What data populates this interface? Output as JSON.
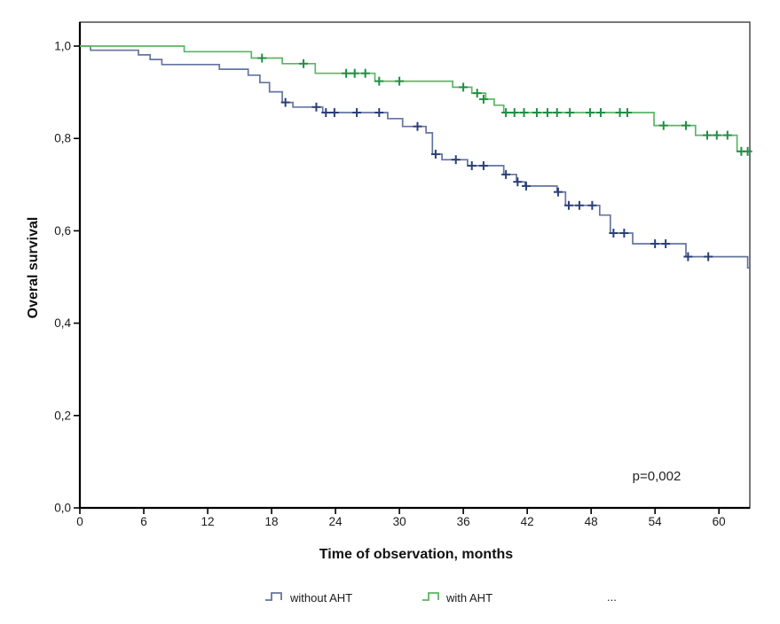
{
  "figure": {
    "background": "#ffffff",
    "frame_color": "#3f3f3f",
    "axis_color": "#000000"
  },
  "chart_data": {
    "type": "line",
    "subtype": "kaplan-meier-step-survival",
    "title": "",
    "xlabel": "Time of observation, months",
    "ylabel": "Overal survival",
    "xlim": [
      0,
      62.9
    ],
    "ylim": [
      0.0,
      1.0
    ],
    "grid": false,
    "legend_position": "bottom",
    "x_ticks": [
      0,
      6,
      12,
      18,
      24,
      30,
      36,
      42,
      48,
      54,
      60
    ],
    "y_ticks": [
      {
        "value": 0.0,
        "label": "0,0"
      },
      {
        "value": 0.2,
        "label": "0,2"
      },
      {
        "value": 0.4,
        "label": "0,4"
      },
      {
        "value": 0.6,
        "label": "0,6"
      },
      {
        "value": 0.8,
        "label": "0,8"
      },
      {
        "value": 1.0,
        "label": "1,0"
      }
    ],
    "annotation": {
      "text": "p=0,002",
      "x_month": 54.2,
      "y_value": 0.065
    },
    "legend_extra": "...",
    "series": [
      {
        "name": "without AHT",
        "color": "#64749f",
        "censor_color": "#2a3f78",
        "start": [
          0,
          1.0
        ],
        "end_x": 62.9,
        "steps": [
          [
            1.0,
            0.991
          ],
          [
            5.5,
            0.981
          ],
          [
            6.6,
            0.971
          ],
          [
            7.7,
            0.96
          ],
          [
            13.1,
            0.95
          ],
          [
            15.8,
            0.937
          ],
          [
            16.9,
            0.921
          ],
          [
            17.8,
            0.901
          ],
          [
            19.0,
            0.878
          ],
          [
            20.0,
            0.868
          ],
          [
            22.8,
            0.856
          ],
          [
            28.9,
            0.843
          ],
          [
            30.3,
            0.826
          ],
          [
            32.5,
            0.812
          ],
          [
            33.1,
            0.766
          ],
          [
            34.0,
            0.754
          ],
          [
            36.4,
            0.741
          ],
          [
            39.8,
            0.722
          ],
          [
            41.0,
            0.706
          ],
          [
            41.8,
            0.697
          ],
          [
            44.8,
            0.684
          ],
          [
            45.6,
            0.655
          ],
          [
            48.8,
            0.634
          ],
          [
            49.8,
            0.595
          ],
          [
            51.9,
            0.572
          ],
          [
            56.9,
            0.544
          ],
          [
            62.7,
            0.52
          ]
        ],
        "censors": [
          [
            19.3,
            0.878
          ],
          [
            22.2,
            0.868
          ],
          [
            23.1,
            0.856
          ],
          [
            23.9,
            0.856
          ],
          [
            26.0,
            0.856
          ],
          [
            28.1,
            0.856
          ],
          [
            31.7,
            0.826
          ],
          [
            33.4,
            0.766
          ],
          [
            35.3,
            0.754
          ],
          [
            36.8,
            0.741
          ],
          [
            37.9,
            0.741
          ],
          [
            40.0,
            0.722
          ],
          [
            41.1,
            0.706
          ],
          [
            41.9,
            0.697
          ],
          [
            44.9,
            0.684
          ],
          [
            45.9,
            0.655
          ],
          [
            46.9,
            0.655
          ],
          [
            48.1,
            0.655
          ],
          [
            50.1,
            0.595
          ],
          [
            51.1,
            0.595
          ],
          [
            54.0,
            0.572
          ],
          [
            55.0,
            0.572
          ],
          [
            57.1,
            0.544
          ],
          [
            59.0,
            0.544
          ]
        ]
      },
      {
        "name": "with AHT",
        "color": "#5bb564",
        "censor_color": "#1f8f43",
        "start": [
          0,
          1.0
        ],
        "end_x": 62.9,
        "steps": [
          [
            9.8,
            0.988
          ],
          [
            16.1,
            0.974
          ],
          [
            19.0,
            0.962
          ],
          [
            22.1,
            0.941
          ],
          [
            27.7,
            0.924
          ],
          [
            35.0,
            0.911
          ],
          [
            36.8,
            0.898
          ],
          [
            38.1,
            0.885
          ],
          [
            38.9,
            0.872
          ],
          [
            39.8,
            0.856
          ],
          [
            53.9,
            0.828
          ],
          [
            57.8,
            0.807
          ],
          [
            61.7,
            0.772
          ]
        ],
        "censors": [
          [
            17.1,
            0.974
          ],
          [
            21.0,
            0.962
          ],
          [
            25.0,
            0.941
          ],
          [
            25.8,
            0.941
          ],
          [
            26.8,
            0.941
          ],
          [
            28.1,
            0.924
          ],
          [
            30.0,
            0.924
          ],
          [
            36.0,
            0.911
          ],
          [
            37.3,
            0.898
          ],
          [
            37.9,
            0.885
          ],
          [
            40.0,
            0.856
          ],
          [
            40.8,
            0.856
          ],
          [
            41.7,
            0.856
          ],
          [
            42.9,
            0.856
          ],
          [
            43.9,
            0.856
          ],
          [
            44.8,
            0.856
          ],
          [
            46.0,
            0.856
          ],
          [
            47.9,
            0.856
          ],
          [
            48.9,
            0.856
          ],
          [
            50.7,
            0.856
          ],
          [
            51.4,
            0.856
          ],
          [
            54.8,
            0.828
          ],
          [
            56.9,
            0.828
          ],
          [
            58.9,
            0.807
          ],
          [
            59.8,
            0.807
          ],
          [
            60.8,
            0.807
          ],
          [
            62.1,
            0.772
          ],
          [
            62.7,
            0.772
          ]
        ]
      }
    ]
  }
}
